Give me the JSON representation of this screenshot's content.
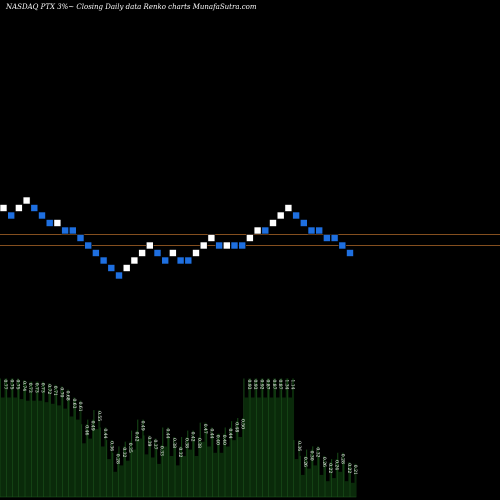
{
  "header": {
    "caption": "NASDAQ PTX  3%~  Closing Daily data  Renko  charts MunafaSutra.com"
  },
  "colors": {
    "background": "#000000",
    "up_brick": "#ffffff",
    "down_brick": "#1e6fe0",
    "reference_line": "#b06a2a",
    "volume_fill": "#0a2a0a",
    "volume_edge": "#1f5a1f",
    "label": "#ffffff"
  },
  "chart_data": {
    "type": "renko",
    "title": "NASDAQ PTX",
    "bricks": [
      {
        "dir": "up",
        "level": 0
      },
      {
        "dir": "down",
        "level": -1
      },
      {
        "dir": "up",
        "level": 0
      },
      {
        "dir": "up",
        "level": 1
      },
      {
        "dir": "down",
        "level": 0
      },
      {
        "dir": "down",
        "level": -1
      },
      {
        "dir": "down",
        "level": -2
      },
      {
        "dir": "up",
        "level": -2
      },
      {
        "dir": "down",
        "level": -3
      },
      {
        "dir": "down",
        "level": -3
      },
      {
        "dir": "down",
        "level": -4
      },
      {
        "dir": "down",
        "level": -5
      },
      {
        "dir": "down",
        "level": -6
      },
      {
        "dir": "down",
        "level": -7
      },
      {
        "dir": "down",
        "level": -8
      },
      {
        "dir": "down",
        "level": -9
      },
      {
        "dir": "up",
        "level": -8
      },
      {
        "dir": "up",
        "level": -7
      },
      {
        "dir": "up",
        "level": -6
      },
      {
        "dir": "up",
        "level": -5
      },
      {
        "dir": "down",
        "level": -6
      },
      {
        "dir": "down",
        "level": -7
      },
      {
        "dir": "up",
        "level": -6
      },
      {
        "dir": "down",
        "level": -7
      },
      {
        "dir": "down",
        "level": -7
      },
      {
        "dir": "up",
        "level": -6
      },
      {
        "dir": "up",
        "level": -5
      },
      {
        "dir": "up",
        "level": -4
      },
      {
        "dir": "down",
        "level": -5
      },
      {
        "dir": "up",
        "level": -5
      },
      {
        "dir": "down",
        "level": -5
      },
      {
        "dir": "down",
        "level": -5
      },
      {
        "dir": "up",
        "level": -4
      },
      {
        "dir": "up",
        "level": -3
      },
      {
        "dir": "down",
        "level": -3
      },
      {
        "dir": "up",
        "level": -2
      },
      {
        "dir": "up",
        "level": -1
      },
      {
        "dir": "up",
        "level": 0
      },
      {
        "dir": "down",
        "level": -1
      },
      {
        "dir": "down",
        "level": -2
      },
      {
        "dir": "down",
        "level": -3
      },
      {
        "dir": "down",
        "level": -3
      },
      {
        "dir": "down",
        "level": -4
      },
      {
        "dir": "down",
        "level": -4
      },
      {
        "dir": "down",
        "level": -5
      },
      {
        "dir": "down",
        "level": -6
      }
    ],
    "volume_bars": [
      {
        "value": 0.77,
        "label": "0.77"
      },
      {
        "value": 0.75,
        "label": "0.75"
      },
      {
        "value": 0.75,
        "label": "0.75"
      },
      {
        "value": 0.74,
        "label": "0.74"
      },
      {
        "value": 0.73,
        "label": "0.73"
      },
      {
        "value": 0.73,
        "label": "0.73"
      },
      {
        "value": 0.73,
        "label": "0.73"
      },
      {
        "value": 0.72,
        "label": "0.72"
      },
      {
        "value": 0.71,
        "label": "0.71"
      },
      {
        "value": 0.7,
        "label": "0.70"
      },
      {
        "value": 0.68,
        "label": "0.68"
      },
      {
        "value": 0.63,
        "label": "0.63"
      },
      {
        "value": 0.61,
        "label": "0.61"
      },
      {
        "value": 0.46,
        "label": "0.46"
      },
      {
        "value": 0.49,
        "label": "0.49"
      },
      {
        "value": 0.55,
        "label": "0.55"
      },
      {
        "value": 0.44,
        "label": "0.44"
      },
      {
        "value": 0.36,
        "label": "0.36"
      },
      {
        "value": 0.28,
        "label": "0.28"
      },
      {
        "value": 0.32,
        "label": "0.32"
      },
      {
        "value": 0.35,
        "label": "0.35"
      },
      {
        "value": 0.42,
        "label": "0.42"
      },
      {
        "value": 0.49,
        "label": "0.49"
      },
      {
        "value": 0.39,
        "label": "0.39"
      },
      {
        "value": 0.37,
        "label": "0.37"
      },
      {
        "value": 0.33,
        "label": "0.33"
      },
      {
        "value": 0.44,
        "label": "0.44"
      },
      {
        "value": 0.38,
        "label": "0.38"
      },
      {
        "value": 0.32,
        "label": "0.32"
      },
      {
        "value": 0.38,
        "label": "0.38"
      },
      {
        "value": 0.42,
        "label": "0.42"
      },
      {
        "value": 0.38,
        "label": "0.38"
      },
      {
        "value": 0.47,
        "label": "0.47"
      },
      {
        "value": 0.44,
        "label": "0.44"
      },
      {
        "value": 0.4,
        "label": "0.40"
      },
      {
        "value": 0.4,
        "label": "0.40"
      },
      {
        "value": 0.44,
        "label": "0.44"
      },
      {
        "value": 0.48,
        "label": "0.48"
      },
      {
        "value": 0.5,
        "label": "0.50"
      },
      {
        "value": 0.93,
        "label": "0.93"
      },
      {
        "value": 0.93,
        "label": "0.93"
      },
      {
        "value": 0.92,
        "label": "0.92"
      },
      {
        "value": 0.87,
        "label": "0.87"
      },
      {
        "value": 0.87,
        "label": "0.87"
      },
      {
        "value": 0.87,
        "label": "0.87"
      },
      {
        "value": 1.34,
        "label": "1.34"
      },
      {
        "value": 1.14,
        "label": "1.14"
      },
      {
        "value": 0.36,
        "label": "0.36"
      },
      {
        "value": 0.26,
        "label": "0.26"
      },
      {
        "value": 0.3,
        "label": "0.30"
      },
      {
        "value": 0.32,
        "label": "0.32"
      },
      {
        "value": 0.26,
        "label": "0.26"
      },
      {
        "value": 0.22,
        "label": "0.22"
      },
      {
        "value": 0.24,
        "label": "0.24"
      },
      {
        "value": 0.28,
        "label": "0.28"
      },
      {
        "value": 0.22,
        "label": "0.22"
      },
      {
        "value": 0.21,
        "label": "0.21"
      }
    ]
  }
}
